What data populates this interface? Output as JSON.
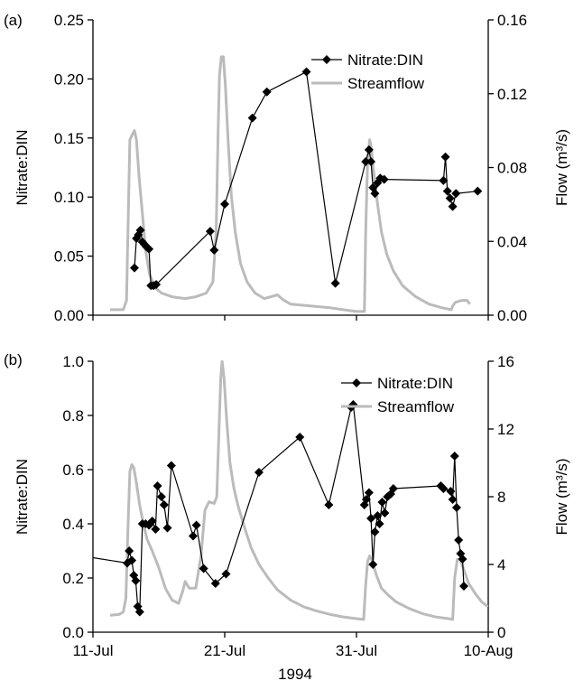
{
  "figure": {
    "xlabel": "1994",
    "x_ticks": [
      "11-Jul",
      "21-Jul",
      "31-Jul",
      "10-Aug"
    ]
  },
  "chart_data": [
    {
      "type": "line",
      "panel_label": "(a)",
      "xlim": [
        0,
        30
      ],
      "x_units": "days after 11-Jul-1994",
      "ylabel_left": "Nitrate:DIN",
      "ylabel_right": "Flow (m³/s)",
      "ylim_left": [
        0.0,
        0.25
      ],
      "ylim_right": [
        0.0,
        0.16
      ],
      "yticks_left": [
        "0.00",
        "0.05",
        "0.10",
        "0.15",
        "0.20",
        "0.25"
      ],
      "yticks_right": [
        "0.00",
        "0.04",
        "0.08",
        "0.12",
        "0.16"
      ],
      "legend_position": "top-right",
      "series": [
        {
          "name": "Nitrate:DIN",
          "axis": "left",
          "color": "#000000",
          "marker": "diamond",
          "points": [
            [
              3.15,
              0.04
            ],
            [
              3.3,
              0.065
            ],
            [
              3.45,
              0.068
            ],
            [
              3.6,
              0.072
            ],
            [
              3.75,
              0.062
            ],
            [
              3.9,
              0.06
            ],
            [
              4.05,
              0.058
            ],
            [
              4.25,
              0.056
            ],
            [
              4.4,
              0.025
            ],
            [
              4.6,
              0.025
            ],
            [
              4.8,
              0.026
            ],
            [
              8.9,
              0.071
            ],
            [
              9.2,
              0.055
            ],
            [
              10.0,
              0.094
            ],
            [
              12.1,
              0.167
            ],
            [
              13.2,
              0.189
            ],
            [
              16.2,
              0.206
            ],
            [
              18.4,
              0.027
            ],
            [
              20.7,
              0.13
            ],
            [
              20.95,
              0.14
            ],
            [
              21.1,
              0.13
            ],
            [
              21.25,
              0.108
            ],
            [
              21.4,
              0.103
            ],
            [
              21.6,
              0.112
            ],
            [
              21.8,
              0.116
            ],
            [
              22.1,
              0.115
            ],
            [
              26.6,
              0.114
            ],
            [
              26.75,
              0.134
            ],
            [
              26.9,
              0.105
            ],
            [
              27.1,
              0.099
            ],
            [
              27.3,
              0.092
            ],
            [
              27.55,
              0.103
            ],
            [
              29.2,
              0.105
            ]
          ]
        },
        {
          "name": "Streamflow",
          "axis": "right",
          "color": "#bbbbbb",
          "points": [
            [
              1.3,
              0.003
            ],
            [
              2.0,
              0.003
            ],
            [
              2.3,
              0.003
            ],
            [
              2.55,
              0.008
            ],
            [
              2.7,
              0.06
            ],
            [
              2.8,
              0.095
            ],
            [
              3.0,
              0.098
            ],
            [
              3.15,
              0.1
            ],
            [
              3.3,
              0.095
            ],
            [
              3.5,
              0.075
            ],
            [
              3.75,
              0.055
            ],
            [
              4.0,
              0.035
            ],
            [
              4.3,
              0.022
            ],
            [
              4.7,
              0.015
            ],
            [
              5.2,
              0.012
            ],
            [
              6.0,
              0.01
            ],
            [
              7.0,
              0.009
            ],
            [
              7.8,
              0.01
            ],
            [
              8.6,
              0.012
            ],
            [
              9.1,
              0.018
            ],
            [
              9.35,
              0.045
            ],
            [
              9.5,
              0.1
            ],
            [
              9.6,
              0.13
            ],
            [
              9.75,
              0.14
            ],
            [
              9.9,
              0.14
            ],
            [
              10.05,
              0.125
            ],
            [
              10.25,
              0.095
            ],
            [
              10.5,
              0.065
            ],
            [
              10.8,
              0.045
            ],
            [
              11.2,
              0.028
            ],
            [
              11.7,
              0.018
            ],
            [
              12.3,
              0.012
            ],
            [
              13.0,
              0.009
            ],
            [
              13.5,
              0.01
            ],
            [
              14.0,
              0.011
            ],
            [
              14.5,
              0.008
            ],
            [
              15.0,
              0.006
            ],
            [
              16.5,
              0.005
            ],
            [
              18.0,
              0.004
            ],
            [
              19.0,
              0.003
            ],
            [
              20.0,
              0.002
            ],
            [
              20.6,
              0.002
            ],
            [
              20.7,
              0.045
            ],
            [
              20.85,
              0.085
            ],
            [
              21.0,
              0.095
            ],
            [
              21.1,
              0.092
            ],
            [
              21.3,
              0.078
            ],
            [
              21.6,
              0.06
            ],
            [
              21.9,
              0.045
            ],
            [
              22.3,
              0.033
            ],
            [
              22.8,
              0.024
            ],
            [
              23.5,
              0.016
            ],
            [
              24.5,
              0.01
            ],
            [
              25.5,
              0.006
            ],
            [
              26.5,
              0.004
            ],
            [
              27.2,
              0.003
            ],
            [
              27.3,
              0.005
            ],
            [
              27.5,
              0.007
            ],
            [
              28.0,
              0.008
            ],
            [
              28.4,
              0.008
            ],
            [
              28.6,
              0.006
            ]
          ]
        }
      ]
    },
    {
      "type": "line",
      "panel_label": "(b)",
      "xlim": [
        0,
        30
      ],
      "x_units": "days after 11-Jul-1994",
      "ylabel_left": "Nitrate:DIN",
      "ylabel_right": "Flow (m³/s)",
      "ylim_left": [
        0.0,
        1.0
      ],
      "ylim_right": [
        0,
        16
      ],
      "yticks_left": [
        "0.0",
        "0.2",
        "0.4",
        "0.6",
        "0.8",
        "1.0"
      ],
      "yticks_right": [
        "0",
        "4",
        "8",
        "12",
        "16"
      ],
      "legend_position": "top-right",
      "series": [
        {
          "name": "Nitrate:DIN",
          "axis": "left",
          "color": "#000000",
          "marker": "diamond",
          "points": [
            [
              2.6,
              0.255
            ],
            [
              2.75,
              0.3
            ],
            [
              2.95,
              0.265
            ],
            [
              3.1,
              0.21
            ],
            [
              3.25,
              0.19
            ],
            [
              3.4,
              0.095
            ],
            [
              3.55,
              0.075
            ],
            [
              3.75,
              0.4
            ],
            [
              4.0,
              0.4
            ],
            [
              4.25,
              0.395
            ],
            [
              4.5,
              0.41
            ],
            [
              4.75,
              0.38
            ],
            [
              4.9,
              0.54
            ],
            [
              5.2,
              0.5
            ],
            [
              5.4,
              0.47
            ],
            [
              5.65,
              0.385
            ],
            [
              5.95,
              0.615
            ],
            [
              7.6,
              0.355
            ],
            [
              7.85,
              0.395
            ],
            [
              8.4,
              0.235
            ],
            [
              9.3,
              0.18
            ],
            [
              10.1,
              0.215
            ],
            [
              12.6,
              0.59
            ],
            [
              15.7,
              0.72
            ],
            [
              17.9,
              0.47
            ],
            [
              19.6,
              0.83
            ],
            [
              19.75,
              0.84
            ],
            [
              20.6,
              0.47
            ],
            [
              20.75,
              0.49
            ],
            [
              20.95,
              0.515
            ],
            [
              21.1,
              0.42
            ],
            [
              21.25,
              0.25
            ],
            [
              21.4,
              0.37
            ],
            [
              21.6,
              0.43
            ],
            [
              21.75,
              0.4
            ],
            [
              21.95,
              0.48
            ],
            [
              22.15,
              0.44
            ],
            [
              22.35,
              0.5
            ],
            [
              22.6,
              0.51
            ],
            [
              22.8,
              0.53
            ],
            [
              26.4,
              0.54
            ],
            [
              26.6,
              0.53
            ],
            [
              27.15,
              0.52
            ],
            [
              27.3,
              0.49
            ],
            [
              27.45,
              0.65
            ],
            [
              27.6,
              0.46
            ],
            [
              27.75,
              0.34
            ],
            [
              27.9,
              0.29
            ],
            [
              28.05,
              0.27
            ],
            [
              28.15,
              0.17
            ]
          ]
        },
        {
          "name": "Streamflow",
          "axis": "right",
          "color": "#bbbbbb",
          "points": [
            [
              1.3,
              1.0
            ],
            [
              2.0,
              1.05
            ],
            [
              2.3,
              1.2
            ],
            [
              2.5,
              2.0
            ],
            [
              2.65,
              6.0
            ],
            [
              2.8,
              9.5
            ],
            [
              2.95,
              9.9
            ],
            [
              3.1,
              9.7
            ],
            [
              3.3,
              8.8
            ],
            [
              3.55,
              7.5
            ],
            [
              3.8,
              6.5
            ],
            [
              4.1,
              5.5
            ],
            [
              4.5,
              4.8
            ],
            [
              5.0,
              3.8
            ],
            [
              5.5,
              2.6
            ],
            [
              6.0,
              1.9
            ],
            [
              6.5,
              1.7
            ],
            [
              6.8,
              2.4
            ],
            [
              7.0,
              3.0
            ],
            [
              7.3,
              2.6
            ],
            [
              7.8,
              2.6
            ],
            [
              8.2,
              4.5
            ],
            [
              8.5,
              7.2
            ],
            [
              8.8,
              7.7
            ],
            [
              9.2,
              7.6
            ],
            [
              9.4,
              8.0
            ],
            [
              9.55,
              11.5
            ],
            [
              9.7,
              15.0
            ],
            [
              9.8,
              16.0
            ],
            [
              9.95,
              15.0
            ],
            [
              10.15,
              12.5
            ],
            [
              10.4,
              10.0
            ],
            [
              10.7,
              8.5
            ],
            [
              11.0,
              7.5
            ],
            [
              11.5,
              6.2
            ],
            [
              12.0,
              5.0
            ],
            [
              12.6,
              4.0
            ],
            [
              13.3,
              3.2
            ],
            [
              14.0,
              2.5
            ],
            [
              15.0,
              1.9
            ],
            [
              16.0,
              1.5
            ],
            [
              17.0,
              1.25
            ],
            [
              18.0,
              1.05
            ],
            [
              19.0,
              0.9
            ],
            [
              20.0,
              0.8
            ],
            [
              20.55,
              0.75
            ],
            [
              20.7,
              2.8
            ],
            [
              20.85,
              4.2
            ],
            [
              21.0,
              4.5
            ],
            [
              21.2,
              4.2
            ],
            [
              21.5,
              3.4
            ],
            [
              21.9,
              2.6
            ],
            [
              22.4,
              2.2
            ],
            [
              23.0,
              1.8
            ],
            [
              24.0,
              1.4
            ],
            [
              25.0,
              1.1
            ],
            [
              26.0,
              0.9
            ],
            [
              27.0,
              0.8
            ],
            [
              27.3,
              0.75
            ],
            [
              27.45,
              3.2
            ],
            [
              27.65,
              4.3
            ],
            [
              27.85,
              4.3
            ],
            [
              28.1,
              3.8
            ],
            [
              28.5,
              2.9
            ],
            [
              29.0,
              2.3
            ],
            [
              29.5,
              1.8
            ],
            [
              30.0,
              1.5
            ]
          ]
        }
      ]
    }
  ]
}
